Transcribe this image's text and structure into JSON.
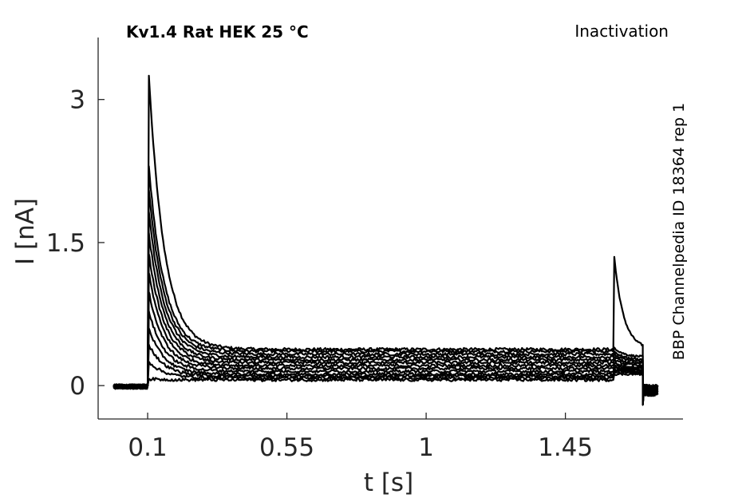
{
  "chart_data": {
    "type": "line",
    "title": "Kv1.4  Rat  HEK  25 °C",
    "subtitle": "Inactivation",
    "side_label": "BBP Channelpedia ID 18364 rep 1",
    "xlabel": "t [s]",
    "ylabel": "I [nA]",
    "xlim": [
      -0.06,
      1.83
    ],
    "ylim": [
      -0.35,
      3.65
    ],
    "xticks": [
      0.1,
      0.55,
      1,
      1.45
    ],
    "xtick_labels": [
      "0.1",
      "0.55",
      "1",
      "1.45"
    ],
    "yticks": [
      0,
      1.5,
      3
    ],
    "ytick_labels": [
      "0",
      "1.5",
      "3"
    ],
    "grid": false,
    "line_color": "#000000",
    "protocol": {
      "pulse1_start_s": 0.1,
      "pulse2_start_s": 1.605,
      "pulse2_end_s": 1.7,
      "record_end_s": 1.75,
      "baseline_start_s": -0.01
    },
    "series": [
      {
        "peak": 3.25,
        "steady": 0.38,
        "tail_peak": 1.35,
        "tail_end": 0.38
      },
      {
        "peak": 2.3,
        "steady": 0.36,
        "tail_peak": 0.4,
        "tail_end": 0.3
      },
      {
        "peak": 2.05,
        "steady": 0.33,
        "tail_peak": 0.36,
        "tail_end": 0.27
      },
      {
        "peak": 1.82,
        "steady": 0.3,
        "tail_peak": 0.33,
        "tail_end": 0.25
      },
      {
        "peak": 1.6,
        "steady": 0.27,
        "tail_peak": 0.3,
        "tail_end": 0.23
      },
      {
        "peak": 1.38,
        "steady": 0.24,
        "tail_peak": 0.27,
        "tail_end": 0.21
      },
      {
        "peak": 1.18,
        "steady": 0.21,
        "tail_peak": 0.24,
        "tail_end": 0.19
      },
      {
        "peak": 0.98,
        "steady": 0.18,
        "tail_peak": 0.21,
        "tail_end": 0.18
      },
      {
        "peak": 0.78,
        "steady": 0.15,
        "tail_peak": 0.19,
        "tail_end": 0.17
      },
      {
        "peak": 0.6,
        "steady": 0.12,
        "tail_peak": 0.17,
        "tail_end": 0.16
      },
      {
        "peak": 0.43,
        "steady": 0.1,
        "tail_peak": 0.16,
        "tail_end": 0.15
      },
      {
        "peak": 0.25,
        "steady": 0.08,
        "tail_peak": 0.14,
        "tail_end": 0.14
      },
      {
        "peak": 0.07,
        "steady": 0.06,
        "tail_peak": 0.12,
        "tail_end": 0.12
      }
    ]
  }
}
